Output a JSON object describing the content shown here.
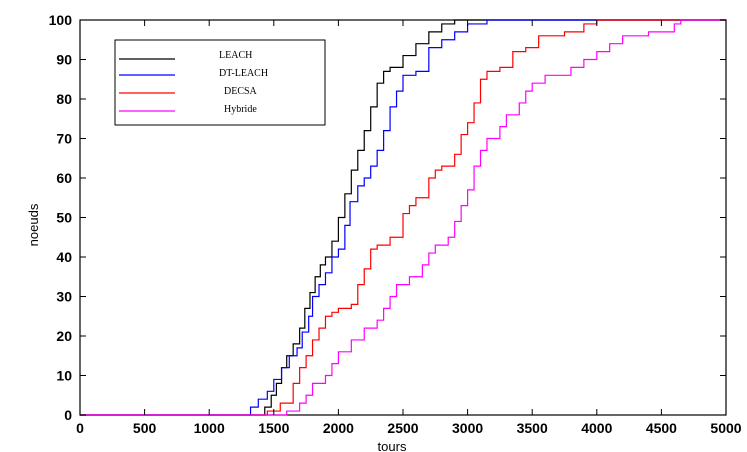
{
  "chart_data": {
    "type": "line",
    "title": "",
    "xlabel": "tours",
    "ylabel": "noeuds",
    "xlim": [
      0,
      5000
    ],
    "ylim": [
      0,
      100
    ],
    "xticks": [
      "0",
      "500",
      "1000",
      "1500",
      "2000",
      "2500",
      "3000",
      "3500",
      "4000",
      "4500",
      "5000"
    ],
    "yticks": [
      "0",
      "10",
      "20",
      "30",
      "40",
      "50",
      "60",
      "70",
      "80",
      "90",
      "100"
    ],
    "grid": false,
    "legend_position": "top-left",
    "series": [
      {
        "name": "LEACH",
        "color": "#000000",
        "points": [
          [
            0,
            0
          ],
          [
            1400,
            0
          ],
          [
            1430,
            2
          ],
          [
            1480,
            5
          ],
          [
            1520,
            8
          ],
          [
            1560,
            12
          ],
          [
            1600,
            15
          ],
          [
            1650,
            18
          ],
          [
            1700,
            22
          ],
          [
            1740,
            27
          ],
          [
            1780,
            31
          ],
          [
            1820,
            35
          ],
          [
            1860,
            38
          ],
          [
            1900,
            40
          ],
          [
            1950,
            44
          ],
          [
            2000,
            50
          ],
          [
            2050,
            56
          ],
          [
            2100,
            62
          ],
          [
            2150,
            67
          ],
          [
            2200,
            72
          ],
          [
            2250,
            78
          ],
          [
            2300,
            84
          ],
          [
            2350,
            87
          ],
          [
            2400,
            88
          ],
          [
            2500,
            91
          ],
          [
            2600,
            94
          ],
          [
            2700,
            97
          ],
          [
            2800,
            99
          ],
          [
            2900,
            100
          ],
          [
            5000,
            100
          ]
        ]
      },
      {
        "name": "DT-LEACH",
        "color": "#0000ff",
        "points": [
          [
            0,
            0
          ],
          [
            1300,
            0
          ],
          [
            1320,
            2
          ],
          [
            1380,
            4
          ],
          [
            1450,
            6
          ],
          [
            1500,
            9
          ],
          [
            1560,
            12
          ],
          [
            1620,
            15
          ],
          [
            1680,
            17
          ],
          [
            1720,
            21
          ],
          [
            1770,
            25
          ],
          [
            1800,
            30
          ],
          [
            1850,
            33
          ],
          [
            1900,
            36
          ],
          [
            1950,
            40
          ],
          [
            2000,
            42
          ],
          [
            2050,
            48
          ],
          [
            2090,
            54
          ],
          [
            2150,
            58
          ],
          [
            2200,
            60
          ],
          [
            2250,
            63
          ],
          [
            2300,
            67
          ],
          [
            2350,
            72
          ],
          [
            2400,
            78
          ],
          [
            2450,
            82
          ],
          [
            2500,
            86
          ],
          [
            2600,
            87
          ],
          [
            2700,
            93
          ],
          [
            2800,
            95
          ],
          [
            2900,
            97
          ],
          [
            3000,
            99
          ],
          [
            3150,
            100
          ],
          [
            5000,
            100
          ]
        ]
      },
      {
        "name": "DECSA",
        "color": "#ff0000",
        "points": [
          [
            0,
            0
          ],
          [
            1400,
            0
          ],
          [
            1450,
            1
          ],
          [
            1550,
            3
          ],
          [
            1650,
            8
          ],
          [
            1700,
            12
          ],
          [
            1750,
            15
          ],
          [
            1800,
            19
          ],
          [
            1850,
            22
          ],
          [
            1900,
            25
          ],
          [
            1950,
            26
          ],
          [
            2000,
            27
          ],
          [
            2100,
            28
          ],
          [
            2150,
            33
          ],
          [
            2200,
            37
          ],
          [
            2250,
            42
          ],
          [
            2300,
            43
          ],
          [
            2400,
            45
          ],
          [
            2500,
            51
          ],
          [
            2550,
            53
          ],
          [
            2600,
            55
          ],
          [
            2700,
            60
          ],
          [
            2750,
            62
          ],
          [
            2800,
            63
          ],
          [
            2900,
            66
          ],
          [
            2950,
            71
          ],
          [
            3000,
            74
          ],
          [
            3050,
            79
          ],
          [
            3100,
            85
          ],
          [
            3150,
            87
          ],
          [
            3250,
            88
          ],
          [
            3350,
            92
          ],
          [
            3450,
            93
          ],
          [
            3550,
            96
          ],
          [
            3750,
            97
          ],
          [
            3900,
            99
          ],
          [
            4000,
            100
          ],
          [
            5000,
            100
          ]
        ]
      },
      {
        "name": "Hybride",
        "color": "#ff00ff",
        "points": [
          [
            0,
            0
          ],
          [
            1550,
            0
          ],
          [
            1600,
            1
          ],
          [
            1700,
            3
          ],
          [
            1750,
            5
          ],
          [
            1800,
            8
          ],
          [
            1900,
            10
          ],
          [
            1950,
            13
          ],
          [
            2000,
            16
          ],
          [
            2100,
            19
          ],
          [
            2200,
            22
          ],
          [
            2300,
            24
          ],
          [
            2350,
            27
          ],
          [
            2400,
            30
          ],
          [
            2450,
            33
          ],
          [
            2550,
            35
          ],
          [
            2650,
            38
          ],
          [
            2700,
            41
          ],
          [
            2750,
            43
          ],
          [
            2850,
            45
          ],
          [
            2900,
            49
          ],
          [
            2950,
            53
          ],
          [
            3000,
            57
          ],
          [
            3050,
            63
          ],
          [
            3100,
            67
          ],
          [
            3150,
            70
          ],
          [
            3250,
            73
          ],
          [
            3300,
            76
          ],
          [
            3400,
            79
          ],
          [
            3450,
            82
          ],
          [
            3500,
            84
          ],
          [
            3600,
            86
          ],
          [
            3800,
            88
          ],
          [
            3900,
            90
          ],
          [
            4000,
            92
          ],
          [
            4100,
            94
          ],
          [
            4200,
            96
          ],
          [
            4400,
            97
          ],
          [
            4600,
            99
          ],
          [
            4650,
            100
          ],
          [
            5000,
            100
          ]
        ]
      }
    ]
  }
}
